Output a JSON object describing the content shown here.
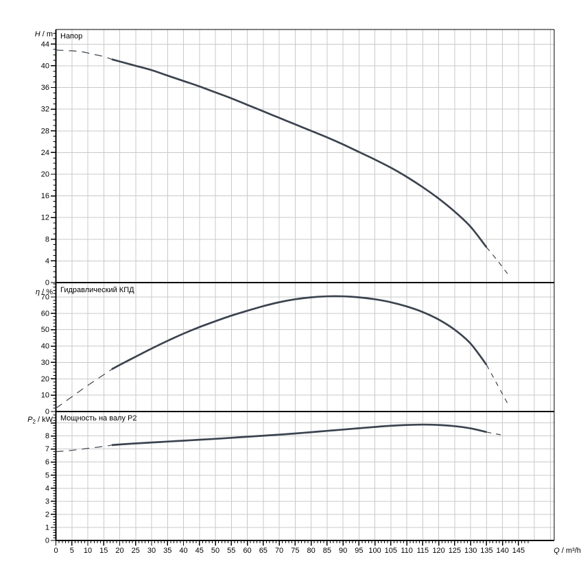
{
  "colors": {
    "curve": "#3b434f",
    "grid": "#c9c9c9",
    "axis": "#000000",
    "background": "#ffffff"
  },
  "chart_data": {
    "type": "line",
    "xaxis": {
      "label": "Q / m³/h",
      "lim": [
        0,
        156.2
      ],
      "major": 5,
      "minor": 1,
      "major_max": 145,
      "minor_max": 148,
      "label_ticks": [
        0,
        5,
        10,
        15,
        20,
        25,
        30,
        35,
        40,
        45,
        50,
        55,
        60,
        65,
        70,
        75,
        80,
        85,
        90,
        95,
        100,
        105,
        110,
        115,
        120,
        125,
        130,
        135,
        140,
        145
      ]
    },
    "panels": [
      {
        "id": "head",
        "title": "Напор",
        "ylabel": {
          "symbol": "H",
          "sub": "",
          "unit": " / m"
        },
        "lim": [
          0,
          46.7
        ],
        "major": 4,
        "minor": 1,
        "major_max": 44,
        "minor_max": 46,
        "labeled_ticks": [
          0,
          4,
          8,
          12,
          16,
          20,
          24,
          28,
          32,
          36,
          40,
          44
        ],
        "series": [
          {
            "name": "head-curve-dashed-lead",
            "style": "dashed",
            "points": [
              [
                0,
                42.9
              ],
              [
                4,
                42.8
              ],
              [
                8,
                42.6
              ],
              [
                12,
                42.1
              ],
              [
                15,
                41.7
              ],
              [
                17.5,
                41.2
              ]
            ]
          },
          {
            "name": "head-curve-solid",
            "style": "solid",
            "points": [
              [
                17.5,
                41.2
              ],
              [
                20,
                40.8
              ],
              [
                25,
                40
              ],
              [
                30,
                39.2
              ],
              [
                35,
                38.2
              ],
              [
                40,
                37.2
              ],
              [
                45,
                36.2
              ],
              [
                50,
                35.1
              ],
              [
                55,
                34
              ],
              [
                60,
                32.8
              ],
              [
                65,
                31.6
              ],
              [
                70,
                30.4
              ],
              [
                75,
                29.2
              ],
              [
                80,
                28
              ],
              [
                85,
                26.8
              ],
              [
                90,
                25.5
              ],
              [
                95,
                24.1
              ],
              [
                100,
                22.7
              ],
              [
                105,
                21.2
              ],
              [
                110,
                19.5
              ],
              [
                115,
                17.6
              ],
              [
                120,
                15.5
              ],
              [
                125,
                13.1
              ],
              [
                130,
                10.3
              ],
              [
                135,
                6.5
              ]
            ]
          },
          {
            "name": "head-curve-dashed-tail",
            "style": "dashed",
            "points": [
              [
                135,
                6.5
              ],
              [
                138.5,
                4
              ],
              [
                142,
                1.3
              ]
            ]
          }
        ]
      },
      {
        "id": "efficiency",
        "title": "Гидравлический КПД",
        "ylabel": {
          "symbol": "η",
          "sub": "",
          "unit": " / %"
        },
        "lim": [
          0,
          78.8
        ],
        "major": 10,
        "minor": 2,
        "major_max": 70,
        "minor_max": 78,
        "labeled_ticks": [
          0,
          10,
          20,
          30,
          40,
          50,
          60,
          70
        ],
        "series": [
          {
            "name": "efficiency-curve-dashed-lead",
            "style": "dashed",
            "points": [
              [
                0,
                2
              ],
              [
                5,
                9
              ],
              [
                10,
                16
              ],
              [
                15,
                22.5
              ],
              [
                17.5,
                25.8
              ]
            ]
          },
          {
            "name": "efficiency-curve-solid",
            "style": "solid",
            "points": [
              [
                17.5,
                25.8
              ],
              [
                20,
                28.5
              ],
              [
                25,
                33.5
              ],
              [
                30,
                38.5
              ],
              [
                35,
                43.2
              ],
              [
                40,
                47.6
              ],
              [
                45,
                51.6
              ],
              [
                50,
                55.2
              ],
              [
                55,
                58.6
              ],
              [
                60,
                61.6
              ],
              [
                65,
                64.4
              ],
              [
                70,
                66.8
              ],
              [
                75,
                68.6
              ],
              [
                80,
                69.8
              ],
              [
                85,
                70.4
              ],
              [
                90,
                70.4
              ],
              [
                95,
                69.8
              ],
              [
                100,
                68.6
              ],
              [
                105,
                66.8
              ],
              [
                110,
                64.2
              ],
              [
                115,
                60.8
              ],
              [
                120,
                56.2
              ],
              [
                125,
                50
              ],
              [
                130,
                41.5
              ],
              [
                135,
                28.5
              ]
            ]
          },
          {
            "name": "efficiency-curve-dashed-tail",
            "style": "dashed",
            "points": [
              [
                135,
                28.5
              ],
              [
                138.5,
                16
              ],
              [
                142,
                3.5
              ]
            ]
          }
        ]
      },
      {
        "id": "power",
        "title": "Мощность на валу P2",
        "ylabel": {
          "symbol": "P",
          "sub": "2",
          "unit": " / kW"
        },
        "lim": [
          0,
          9.87
        ],
        "major": 1,
        "minor": 0.2,
        "major_max": 9,
        "minor_max": 9.8,
        "labeled_ticks": [
          0,
          1,
          2,
          3,
          4,
          5,
          6,
          7,
          8
        ],
        "series": [
          {
            "name": "power-curve-dashed-lead",
            "style": "dashed",
            "points": [
              [
                0,
                6.8
              ],
              [
                5,
                6.9
              ],
              [
                10,
                7.05
              ],
              [
                15,
                7.2
              ],
              [
                17.5,
                7.3
              ]
            ]
          },
          {
            "name": "power-curve-solid",
            "style": "solid",
            "points": [
              [
                17.5,
                7.3
              ],
              [
                20,
                7.35
              ],
              [
                25,
                7.43
              ],
              [
                30,
                7.5
              ],
              [
                35,
                7.57
              ],
              [
                40,
                7.64
              ],
              [
                45,
                7.71
              ],
              [
                50,
                7.78
              ],
              [
                55,
                7.86
              ],
              [
                60,
                7.94
              ],
              [
                65,
                8.02
              ],
              [
                70,
                8.1
              ],
              [
                75,
                8.19
              ],
              [
                80,
                8.29
              ],
              [
                85,
                8.39
              ],
              [
                90,
                8.49
              ],
              [
                95,
                8.59
              ],
              [
                100,
                8.69
              ],
              [
                105,
                8.78
              ],
              [
                110,
                8.84
              ],
              [
                115,
                8.87
              ],
              [
                120,
                8.84
              ],
              [
                125,
                8.75
              ],
              [
                130,
                8.58
              ],
              [
                135,
                8.3
              ]
            ]
          },
          {
            "name": "power-curve-dashed-tail",
            "style": "dashed",
            "points": [
              [
                135,
                8.3
              ],
              [
                138,
                8.15
              ],
              [
                140.5,
                8.05
              ]
            ]
          }
        ]
      }
    ]
  }
}
